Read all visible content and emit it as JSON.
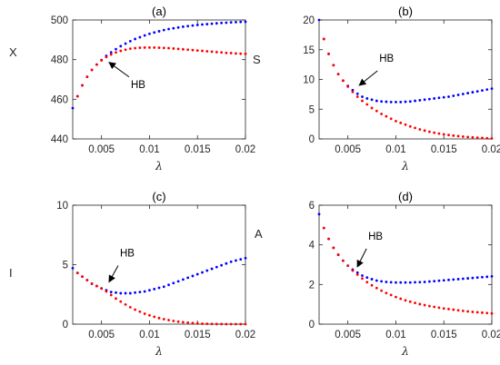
{
  "chart_data": [
    {
      "type": "scatter",
      "title": "(a)",
      "xlabel": "λ",
      "ylabel": "X",
      "xlim": [
        0.002,
        0.02
      ],
      "ylim": [
        440,
        500
      ],
      "xticks": [
        0.005,
        0.01,
        0.015,
        0.02
      ],
      "xtick_labels": [
        "0.005",
        "0.01",
        "0.015",
        "0.02"
      ],
      "yticks": [
        440,
        460,
        480,
        500
      ],
      "ytick_labels": [
        "440",
        "460",
        "480",
        "500"
      ],
      "grid": false,
      "annotation": {
        "text": "HB",
        "x": 0.0056,
        "y": 479.5
      },
      "series": [
        {
          "color": "#0000ff",
          "x": [
            0.002,
            0.0025,
            0.003,
            0.0035,
            0.004,
            0.0045,
            0.005,
            0.0055,
            0.006,
            0.0065,
            0.007,
            0.0075,
            0.008,
            0.0085,
            0.009,
            0.0095,
            0.01,
            0.0105,
            0.011,
            0.0115,
            0.012,
            0.0125,
            0.013,
            0.0135,
            0.014,
            0.0145,
            0.015,
            0.0155,
            0.016,
            0.0165,
            0.017,
            0.0175,
            0.018,
            0.0185,
            0.019,
            0.0195,
            0.02
          ],
          "y": [
            455.5,
            461.5,
            467,
            471.3,
            474.8,
            477.5,
            479.8,
            481.9,
            483.7,
            485.3,
            486.8,
            488.1,
            489.3,
            490.4,
            491.3,
            492.2,
            493.0,
            493.7,
            494.3,
            494.9,
            495.4,
            495.8,
            496.2,
            496.6,
            496.9,
            497.2,
            497.5,
            497.7,
            497.9,
            498.1,
            498.3,
            498.5,
            498.6,
            498.8,
            498.9,
            499.0,
            499.1
          ]
        },
        {
          "color": "#ff0000",
          "x": [
            0.0025,
            0.003,
            0.0035,
            0.004,
            0.0045,
            0.005,
            0.0055,
            0.006,
            0.0065,
            0.007,
            0.0075,
            0.008,
            0.0085,
            0.009,
            0.0095,
            0.01,
            0.0105,
            0.011,
            0.0115,
            0.012,
            0.0125,
            0.013,
            0.0135,
            0.014,
            0.0145,
            0.015,
            0.0155,
            0.016,
            0.0165,
            0.017,
            0.0175,
            0.018,
            0.0185,
            0.019,
            0.0195,
            0.02
          ],
          "y": [
            461.5,
            467,
            471.3,
            474.8,
            477.5,
            479.6,
            481.3,
            482.6,
            483.6,
            484.4,
            485.0,
            485.5,
            485.8,
            486.0,
            486.1,
            486.1,
            486.1,
            486.0,
            485.9,
            485.8,
            485.6,
            485.4,
            485.2,
            485.0,
            484.8,
            484.6,
            484.4,
            484.2,
            484.0,
            483.8,
            483.6,
            483.4,
            483.3,
            483.1,
            483.0,
            482.9
          ]
        }
      ]
    },
    {
      "type": "scatter",
      "title": "(b)",
      "xlabel": "λ",
      "ylabel": "S",
      "xlim": [
        0.002,
        0.02
      ],
      "ylim": [
        0,
        20
      ],
      "xticks": [
        0.005,
        0.01,
        0.015,
        0.02
      ],
      "xtick_labels": [
        "0.005",
        "0.01",
        "0.015",
        "0.02"
      ],
      "yticks": [
        0,
        5,
        10,
        15,
        20
      ],
      "ytick_labels": [
        "0",
        "5",
        "10",
        "15",
        "20"
      ],
      "grid": false,
      "annotation": {
        "text": "HB",
        "x": 0.006,
        "y": 8.7
      },
      "series": [
        {
          "color": "#0000ff",
          "x": [
            0.002,
            0.0025,
            0.003,
            0.0035,
            0.004,
            0.0045,
            0.005,
            0.0055,
            0.006,
            0.0065,
            0.007,
            0.0075,
            0.008,
            0.0085,
            0.009,
            0.0095,
            0.01,
            0.0105,
            0.011,
            0.0115,
            0.012,
            0.0125,
            0.013,
            0.0135,
            0.014,
            0.0145,
            0.015,
            0.0155,
            0.016,
            0.0165,
            0.017,
            0.0175,
            0.018,
            0.0185,
            0.019,
            0.0195,
            0.02
          ],
          "y": [
            20.0,
            16.8,
            14.3,
            12.4,
            10.9,
            9.8,
            8.9,
            8.2,
            7.6,
            7.1,
            6.8,
            6.6,
            6.4,
            6.3,
            6.25,
            6.2,
            6.2,
            6.2,
            6.25,
            6.3,
            6.4,
            6.5,
            6.6,
            6.7,
            6.8,
            6.9,
            7.0,
            7.1,
            7.25,
            7.4,
            7.55,
            7.7,
            7.85,
            8.0,
            8.15,
            8.3,
            8.45
          ]
        },
        {
          "color": "#ff0000",
          "x": [
            0.0025,
            0.003,
            0.0035,
            0.004,
            0.0045,
            0.005,
            0.0055,
            0.006,
            0.0065,
            0.007,
            0.0075,
            0.008,
            0.0085,
            0.009,
            0.0095,
            0.01,
            0.0105,
            0.011,
            0.0115,
            0.012,
            0.0125,
            0.013,
            0.0135,
            0.014,
            0.0145,
            0.015,
            0.0155,
            0.016,
            0.0165,
            0.017,
            0.0175,
            0.018,
            0.0185,
            0.019,
            0.0195,
            0.02
          ],
          "y": [
            16.8,
            14.3,
            12.4,
            10.9,
            9.8,
            8.8,
            7.9,
            7.1,
            6.4,
            5.8,
            5.2,
            4.7,
            4.2,
            3.8,
            3.4,
            3.0,
            2.7,
            2.4,
            2.1,
            1.85,
            1.6,
            1.4,
            1.2,
            1.05,
            0.9,
            0.78,
            0.66,
            0.56,
            0.47,
            0.39,
            0.32,
            0.26,
            0.21,
            0.16,
            0.12,
            0.08
          ]
        }
      ]
    },
    {
      "type": "scatter",
      "title": "(c)",
      "xlabel": "λ",
      "ylabel": "I",
      "xlim": [
        0.002,
        0.02
      ],
      "ylim": [
        0,
        10
      ],
      "xticks": [
        0.005,
        0.01,
        0.015,
        0.02
      ],
      "xtick_labels": [
        "0.005",
        "0.01",
        "0.015",
        "0.02"
      ],
      "yticks": [
        0,
        5,
        10
      ],
      "ytick_labels": [
        "0",
        "5",
        "10"
      ],
      "grid": false,
      "annotation": {
        "text": "HB",
        "x": 0.0056,
        "y": 3.4
      },
      "series": [
        {
          "color": "#0000ff",
          "x": [
            0.002,
            0.0025,
            0.003,
            0.0035,
            0.004,
            0.0045,
            0.005,
            0.0055,
            0.006,
            0.0065,
            0.007,
            0.0075,
            0.008,
            0.0085,
            0.009,
            0.0095,
            0.01,
            0.0105,
            0.011,
            0.0115,
            0.012,
            0.0125,
            0.013,
            0.0135,
            0.014,
            0.0145,
            0.015,
            0.0155,
            0.016,
            0.0165,
            0.017,
            0.0175,
            0.018,
            0.0185,
            0.019,
            0.0195,
            0.02
          ],
          "y": [
            4.7,
            4.3,
            4.0,
            3.7,
            3.4,
            3.2,
            3.0,
            2.85,
            2.7,
            2.65,
            2.6,
            2.6,
            2.6,
            2.65,
            2.7,
            2.75,
            2.85,
            2.95,
            3.05,
            3.15,
            3.3,
            3.45,
            3.6,
            3.75,
            3.9,
            4.05,
            4.2,
            4.35,
            4.5,
            4.65,
            4.8,
            4.95,
            5.1,
            5.25,
            5.35,
            5.45,
            5.55
          ]
        },
        {
          "color": "#ff0000",
          "x": [
            0.0025,
            0.003,
            0.0035,
            0.004,
            0.0045,
            0.005,
            0.0055,
            0.006,
            0.0065,
            0.007,
            0.0075,
            0.008,
            0.0085,
            0.009,
            0.0095,
            0.01,
            0.0105,
            0.011,
            0.0115,
            0.012,
            0.0125,
            0.013,
            0.0135,
            0.014,
            0.0145,
            0.015,
            0.0155,
            0.016,
            0.0165,
            0.017,
            0.0175,
            0.018,
            0.0185,
            0.019,
            0.0195,
            0.02
          ],
          "y": [
            4.3,
            4.0,
            3.7,
            3.4,
            3.2,
            3.0,
            2.75,
            2.45,
            2.15,
            1.9,
            1.65,
            1.42,
            1.22,
            1.05,
            0.88,
            0.74,
            0.62,
            0.51,
            0.42,
            0.34,
            0.27,
            0.21,
            0.16,
            0.12,
            0.09,
            0.06,
            0.04,
            0.03,
            0.02,
            0.01,
            0.01,
            0.0,
            0.0,
            0.0,
            0.0,
            0.0
          ]
        }
      ]
    },
    {
      "type": "scatter",
      "title": "(d)",
      "xlabel": "λ",
      "ylabel": "A",
      "xlim": [
        0.002,
        0.02
      ],
      "ylim": [
        0,
        6
      ],
      "xticks": [
        0.005,
        0.01,
        0.015,
        0.02
      ],
      "xtick_labels": [
        "0.005",
        "0.01",
        "0.015",
        "0.02"
      ],
      "yticks": [
        0,
        2,
        4,
        6
      ],
      "ytick_labels": [
        "0",
        "2",
        "4",
        "6"
      ],
      "grid": false,
      "annotation": {
        "text": "HB",
        "x": 0.0058,
        "y": 2.8
      },
      "series": [
        {
          "color": "#0000ff",
          "x": [
            0.002,
            0.0025,
            0.003,
            0.0035,
            0.004,
            0.0045,
            0.005,
            0.0055,
            0.006,
            0.0065,
            0.007,
            0.0075,
            0.008,
            0.0085,
            0.009,
            0.0095,
            0.01,
            0.0105,
            0.011,
            0.0115,
            0.012,
            0.0125,
            0.013,
            0.0135,
            0.014,
            0.0145,
            0.015,
            0.0155,
            0.016,
            0.0165,
            0.017,
            0.0175,
            0.018,
            0.0185,
            0.019,
            0.0195,
            0.02
          ],
          "y": [
            5.55,
            4.85,
            4.3,
            3.85,
            3.5,
            3.2,
            2.95,
            2.75,
            2.6,
            2.45,
            2.35,
            2.27,
            2.2,
            2.16,
            2.13,
            2.11,
            2.1,
            2.1,
            2.1,
            2.1,
            2.11,
            2.12,
            2.13,
            2.15,
            2.17,
            2.19,
            2.21,
            2.23,
            2.25,
            2.27,
            2.29,
            2.31,
            2.33,
            2.35,
            2.37,
            2.39,
            2.41
          ]
        },
        {
          "color": "#ff0000",
          "x": [
            0.0025,
            0.003,
            0.0035,
            0.004,
            0.0045,
            0.005,
            0.0055,
            0.006,
            0.0065,
            0.007,
            0.0075,
            0.008,
            0.0085,
            0.009,
            0.0095,
            0.01,
            0.0105,
            0.011,
            0.0115,
            0.012,
            0.0125,
            0.013,
            0.0135,
            0.014,
            0.0145,
            0.015,
            0.0155,
            0.016,
            0.0165,
            0.017,
            0.0175,
            0.018,
            0.0185,
            0.019,
            0.0195,
            0.02
          ],
          "y": [
            4.85,
            4.3,
            3.85,
            3.5,
            3.2,
            2.95,
            2.7,
            2.5,
            2.3,
            2.12,
            1.96,
            1.82,
            1.69,
            1.57,
            1.47,
            1.37,
            1.28,
            1.2,
            1.13,
            1.07,
            1.01,
            0.96,
            0.91,
            0.87,
            0.83,
            0.79,
            0.76,
            0.73,
            0.7,
            0.67,
            0.64,
            0.62,
            0.6,
            0.58,
            0.56,
            0.54
          ]
        }
      ]
    }
  ]
}
